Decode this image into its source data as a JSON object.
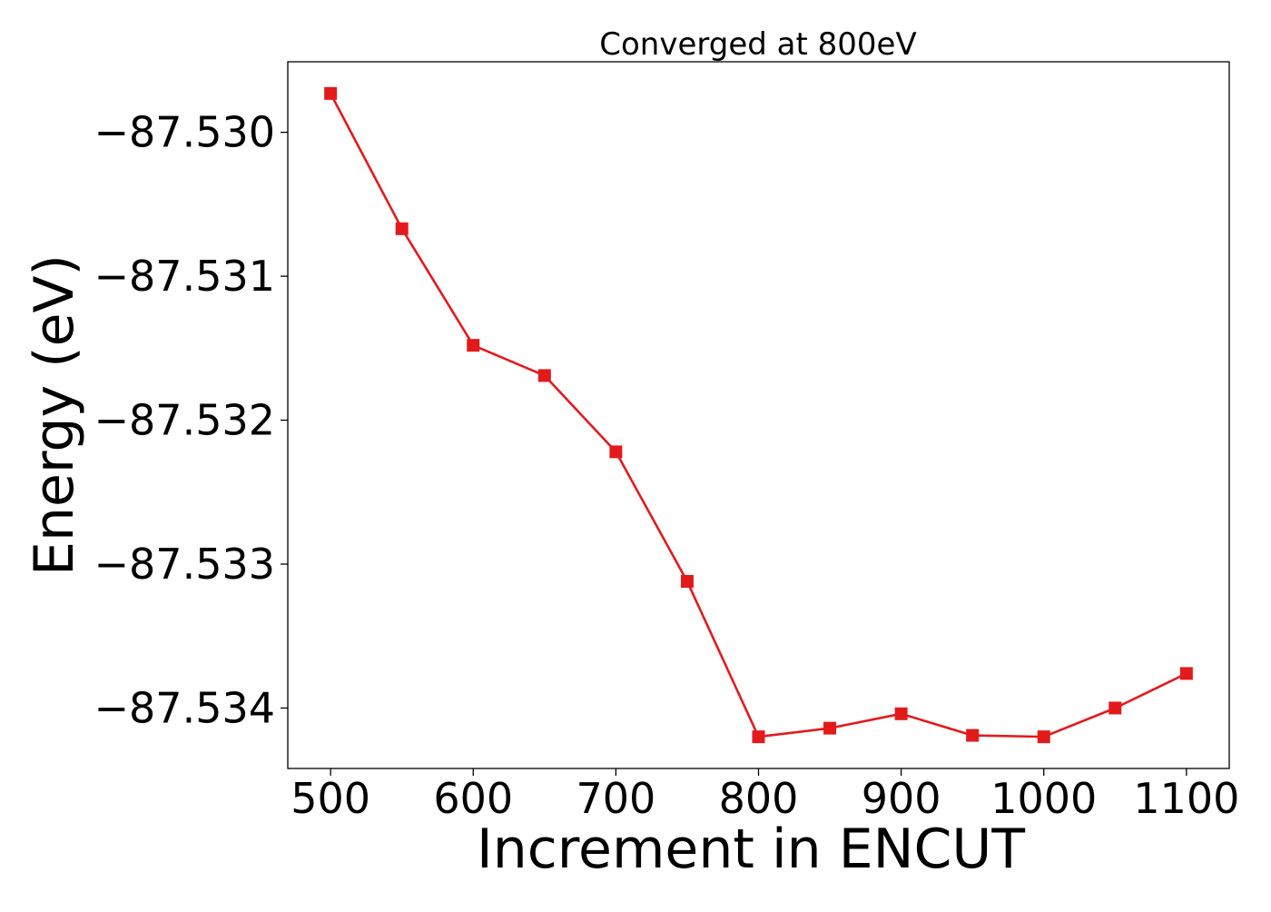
{
  "chart_data": {
    "type": "line",
    "title": "Converged at 800eV",
    "xlabel": "Increment in ENCUT",
    "ylabel": "Energy (eV)",
    "x_ticks": [
      500,
      600,
      700,
      800,
      900,
      1000,
      1100
    ],
    "y_ticks": [
      -87.53,
      -87.531,
      -87.532,
      -87.533,
      -87.534
    ],
    "y_tick_labels": [
      "−87.530",
      "−87.531",
      "−87.532",
      "−87.533",
      "−87.534"
    ],
    "xlim": [
      470,
      1130
    ],
    "ylim": [
      -87.53442,
      -87.52951
    ],
    "grid": false,
    "legend": "none",
    "series": [
      {
        "color": "#e31a1c",
        "marker": "square",
        "x": [
          500,
          550,
          600,
          650,
          700,
          750,
          800,
          850,
          900,
          950,
          1000,
          1050,
          1100
        ],
        "y": [
          -87.52973,
          -87.53067,
          -87.53148,
          -87.53169,
          -87.53222,
          -87.53312,
          -87.5342,
          -87.53414,
          -87.53404,
          -87.53419,
          -87.5342,
          -87.534,
          -87.53376
        ]
      }
    ]
  }
}
